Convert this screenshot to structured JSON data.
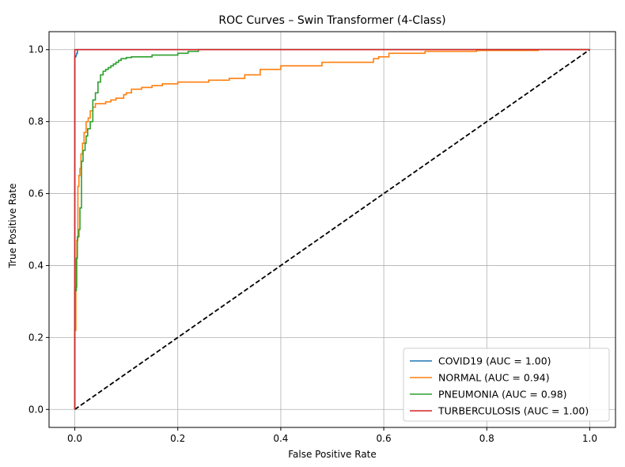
{
  "chart_data": {
    "type": "line",
    "title": "ROC Curves – Swin Transformer (4-Class)",
    "xlabel": "False Positive Rate",
    "ylabel": "True Positive Rate",
    "xlim": [
      -0.05,
      1.05
    ],
    "ylim": [
      -0.05,
      1.05
    ],
    "xticks": [
      0.0,
      0.2,
      0.4,
      0.6,
      0.8,
      1.0
    ],
    "yticks": [
      0.0,
      0.2,
      0.4,
      0.6,
      0.8,
      1.0
    ],
    "xtick_labels": [
      "0.0",
      "0.2",
      "0.4",
      "0.6",
      "0.8",
      "1.0"
    ],
    "ytick_labels": [
      "0.0",
      "0.2",
      "0.4",
      "0.6",
      "0.8",
      "1.0"
    ],
    "grid": true,
    "legend_position": "lower-right",
    "series": [
      {
        "name": "COVID19 (AUC = 1.00)",
        "color": "#1f77b4",
        "x": [
          0,
          0,
          0.002,
          0.004,
          0.005,
          0.005,
          1.0
        ],
        "y": [
          0,
          0.98,
          0.98,
          0.99,
          0.99,
          1.0,
          1.0
        ]
      },
      {
        "name": "NORMAL (AUC = 0.94)",
        "color": "#ff7f0e",
        "x": [
          0,
          0,
          0.002,
          0.002,
          0.004,
          0.004,
          0.006,
          0.006,
          0.008,
          0.008,
          0.01,
          0.01,
          0.012,
          0.012,
          0.015,
          0.015,
          0.018,
          0.018,
          0.022,
          0.022,
          0.026,
          0.026,
          0.03,
          0.03,
          0.035,
          0.035,
          0.04,
          0.04,
          0.05,
          0.05,
          0.06,
          0.06,
          0.07,
          0.07,
          0.08,
          0.08,
          0.095,
          0.095,
          0.1,
          0.1,
          0.11,
          0.11,
          0.13,
          0.13,
          0.15,
          0.15,
          0.17,
          0.17,
          0.2,
          0.2,
          0.26,
          0.26,
          0.3,
          0.3,
          0.33,
          0.33,
          0.36,
          0.36,
          0.4,
          0.4,
          0.43,
          0.43,
          0.48,
          0.48,
          0.53,
          0.53,
          0.58,
          0.58,
          0.59,
          0.59,
          0.61,
          0.61,
          0.68,
          0.68,
          0.78,
          0.78,
          0.9,
          0.9,
          1.0
        ],
        "y": [
          0,
          0.22,
          0.22,
          0.34,
          0.34,
          0.47,
          0.47,
          0.62,
          0.62,
          0.65,
          0.65,
          0.67,
          0.67,
          0.71,
          0.71,
          0.74,
          0.74,
          0.77,
          0.77,
          0.8,
          0.8,
          0.81,
          0.81,
          0.83,
          0.83,
          0.84,
          0.84,
          0.85,
          0.85,
          0.85,
          0.85,
          0.855,
          0.855,
          0.86,
          0.86,
          0.865,
          0.865,
          0.875,
          0.875,
          0.88,
          0.88,
          0.89,
          0.89,
          0.895,
          0.895,
          0.9,
          0.9,
          0.905,
          0.905,
          0.91,
          0.91,
          0.915,
          0.915,
          0.92,
          0.92,
          0.93,
          0.93,
          0.945,
          0.945,
          0.955,
          0.955,
          0.955,
          0.955,
          0.965,
          0.965,
          0.965,
          0.965,
          0.975,
          0.975,
          0.98,
          0.98,
          0.99,
          0.99,
          0.995,
          0.995,
          0.998,
          0.998,
          1.0,
          1.0
        ]
      },
      {
        "name": "PNEUMONIA (AUC = 0.98)",
        "color": "#2ca02c",
        "x": [
          0,
          0,
          0.003,
          0.003,
          0.005,
          0.005,
          0.008,
          0.008,
          0.01,
          0.01,
          0.013,
          0.013,
          0.016,
          0.016,
          0.02,
          0.02,
          0.022,
          0.022,
          0.025,
          0.025,
          0.03,
          0.03,
          0.035,
          0.035,
          0.04,
          0.04,
          0.045,
          0.045,
          0.05,
          0.05,
          0.055,
          0.055,
          0.06,
          0.06,
          0.065,
          0.065,
          0.07,
          0.07,
          0.075,
          0.075,
          0.08,
          0.08,
          0.085,
          0.085,
          0.09,
          0.09,
          0.1,
          0.1,
          0.11,
          0.11,
          0.15,
          0.15,
          0.2,
          0.2,
          0.22,
          0.22,
          0.24,
          0.24,
          1.0
        ],
        "y": [
          0,
          0.33,
          0.33,
          0.42,
          0.42,
          0.48,
          0.48,
          0.5,
          0.5,
          0.56,
          0.56,
          0.69,
          0.69,
          0.72,
          0.72,
          0.74,
          0.74,
          0.76,
          0.76,
          0.78,
          0.78,
          0.8,
          0.8,
          0.86,
          0.86,
          0.88,
          0.88,
          0.91,
          0.91,
          0.93,
          0.93,
          0.94,
          0.94,
          0.945,
          0.945,
          0.95,
          0.95,
          0.955,
          0.955,
          0.96,
          0.96,
          0.965,
          0.965,
          0.97,
          0.97,
          0.975,
          0.975,
          0.978,
          0.978,
          0.98,
          0.98,
          0.985,
          0.985,
          0.99,
          0.99,
          0.995,
          0.995,
          1.0,
          1.0
        ]
      },
      {
        "name": "TURBERCULOSIS (AUC = 1.00)",
        "color": "#d62728",
        "x": [
          0,
          0,
          1.0
        ],
        "y": [
          0,
          1.0,
          1.0
        ]
      }
    ],
    "reference_line": {
      "x": [
        0,
        1
      ],
      "y": [
        0,
        1
      ],
      "color": "#000000",
      "style": "dashed"
    }
  }
}
